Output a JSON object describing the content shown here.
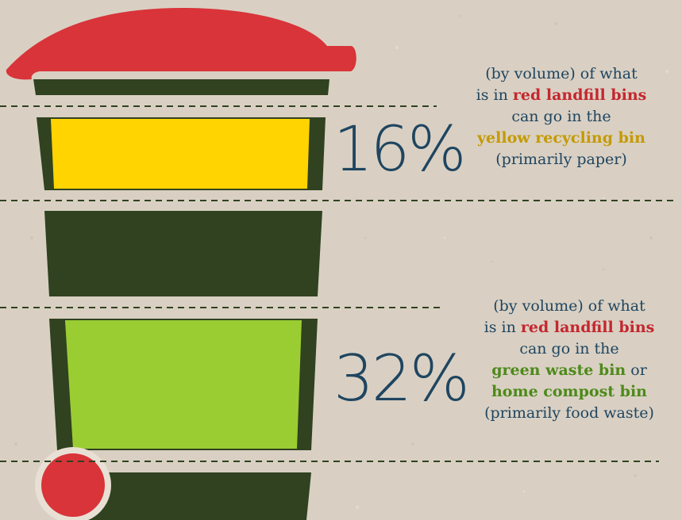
{
  "stats": [
    {
      "percent": "16%",
      "line1": "(by volume) of what",
      "line2_prefix": "is in ",
      "line2_bold": "red landfill bins",
      "line3": "can go in the",
      "line4_bold": "yellow recycling bin",
      "line5": "(primarily paper)"
    },
    {
      "percent": "32%",
      "line1": "(by volume) of what",
      "line2_prefix": "is in ",
      "line2_bold": "red landfill bins",
      "line3": "can go in the",
      "line4_bold": "green waste bin",
      "line4_suffix": " or",
      "line5_bold": "home compost bin",
      "line6": "(primarily food waste)"
    }
  ],
  "colors": {
    "background": "#d9d0c3",
    "bin_body": "#304220",
    "lid": "#d8343a",
    "yellow_band": "#ffd400",
    "green_band": "#9acd32",
    "text": "#1f4560",
    "divider": "#304220"
  },
  "icons": {
    "bin": "wheelie-bin-icon",
    "wheel": "wheel-icon"
  }
}
